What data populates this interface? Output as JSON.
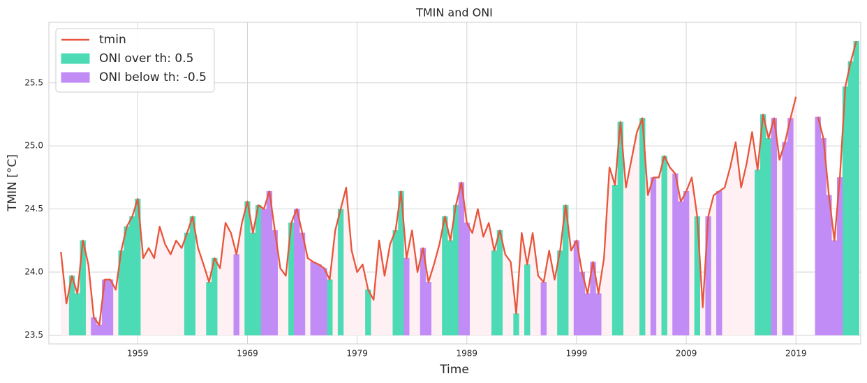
{
  "chart_data": {
    "type": "line",
    "title": "TMIN and ONI",
    "x_label": "Time",
    "y_label": "TMIN [°C]",
    "xlim": [
      1950.9,
      2024.9
    ],
    "xticks": [
      1959,
      1969,
      1979,
      1989,
      1999,
      2009,
      2019
    ],
    "ylim": [
      23.43,
      25.98
    ],
    "yticks": [
      {
        "value": 23.5,
        "label": "23.5"
      },
      {
        "value": 24,
        "label": "24.0"
      },
      {
        "value": 24.5,
        "label": "24.5"
      },
      {
        "value": 25,
        "label": "25.0"
      },
      {
        "value": 25.5,
        "label": "25.5"
      }
    ],
    "grid": true,
    "legend": "upper-left",
    "fill_base": 23.5,
    "background_fill": "#fff0f3",
    "x": [
      1952,
      1952.5,
      1953,
      1953.5,
      1954,
      1954.5,
      1955,
      1955.5,
      1956,
      1956.5,
      1957,
      1957.5,
      1958,
      1958.5,
      1959,
      1959.5,
      1960,
      1960.5,
      1961,
      1961.5,
      1962,
      1962.5,
      1963,
      1963.5,
      1964,
      1964.5,
      1965,
      1965.5,
      1966,
      1966.5,
      1967,
      1967.5,
      1968,
      1968.5,
      1969,
      1969.5,
      1970,
      1970.5,
      1971,
      1971.5,
      1972,
      1972.5,
      1973,
      1973.5,
      1974,
      1974.5,
      1975,
      1975.5,
      1976,
      1976.5,
      1977,
      1977.5,
      1978,
      1978.5,
      1979,
      1979.5,
      1980,
      1980.5,
      1981,
      1981.5,
      1982,
      1982.5,
      1983,
      1983.5,
      1984,
      1984.5,
      1985,
      1985.5,
      1986,
      1986.5,
      1987,
      1987.5,
      1988,
      1988.5,
      1989,
      1989.5,
      1990,
      1990.5,
      1991,
      1991.5,
      1992,
      1992.5,
      1993,
      1993.5,
      1994,
      1994.5,
      1995,
      1995.5,
      1996,
      1996.5,
      1997,
      1997.5,
      1998,
      1998.5,
      1999,
      1999.5,
      2000,
      2000.5,
      2001,
      2001.5,
      2002,
      2002.5,
      2003,
      2003.5,
      2004,
      2004.5,
      2005,
      2005.5,
      2006,
      2006.5,
      2007,
      2007.5,
      2008,
      2008.5,
      2009,
      2009.5,
      2010,
      2010.5,
      2011,
      2011.5,
      2012,
      2012.5,
      2013,
      2013.5,
      2014,
      2014.5,
      2015,
      2015.5,
      2016,
      2016.5,
      2017,
      2017.5,
      2018,
      2018.5,
      2019,
      2019.5,
      2020,
      2020.5,
      2021,
      2021.5,
      2022,
      2022.5,
      2023,
      2023.5,
      2024,
      2024.5
    ],
    "series": [
      {
        "name": "tmin",
        "color": "#e8553a",
        "values": [
          24.16,
          23.75,
          23.97,
          23.83,
          24.25,
          24.06,
          23.64,
          23.58,
          23.94,
          23.94,
          23.86,
          24.17,
          24.36,
          24.44,
          24.58,
          24.11,
          24.19,
          24.11,
          24.36,
          24.22,
          24.14,
          24.25,
          24.19,
          24.31,
          24.44,
          24.19,
          24.06,
          23.92,
          24.11,
          24.03,
          24.39,
          24.31,
          24.14,
          24.39,
          24.56,
          24.31,
          24.53,
          24.5,
          24.64,
          24.33,
          24.03,
          23.97,
          24.39,
          24.5,
          24.31,
          24.11,
          24.08,
          24.06,
          24.03,
          23.94,
          24.33,
          24.5,
          24.67,
          24.17,
          24.0,
          24.06,
          23.86,
          23.78,
          24.25,
          23.97,
          24.22,
          24.33,
          24.64,
          24.11,
          24.33,
          24.0,
          24.19,
          23.92,
          24.06,
          24.22,
          24.44,
          24.25,
          24.53,
          24.71,
          24.39,
          24.31,
          24.5,
          24.28,
          24.39,
          24.17,
          24.33,
          24.14,
          24.08,
          23.67,
          24.31,
          24.06,
          24.31,
          23.97,
          23.92,
          24.17,
          23.94,
          24.17,
          24.53,
          24.17,
          24.25,
          24.0,
          23.83,
          24.08,
          23.83,
          24.11,
          24.83,
          24.69,
          25.19,
          24.67,
          24.89,
          25.11,
          25.22,
          24.61,
          24.75,
          24.75,
          24.92,
          24.83,
          24.78,
          24.56,
          24.64,
          24.75,
          24.44,
          23.72,
          24.44,
          24.61,
          24.64,
          24.67,
          24.83,
          25.03,
          24.67,
          24.86,
          25.11,
          24.81,
          25.25,
          25.06,
          25.22,
          24.89,
          25.03,
          25.22,
          25.39,
          null,
          null,
          null,
          25.23,
          25.06,
          24.61,
          24.25,
          24.75,
          25.47,
          25.67,
          25.83
        ]
      },
      {
        "name": "ONI over th: 0.5",
        "color": "#4cdbb4",
        "fill": true,
        "x": [
          1953,
          1953.5,
          1954,
          1957.5,
          1958,
          1958.5,
          1959,
          1963.5,
          1964,
          1965.5,
          1966,
          1969,
          1969.5,
          1970,
          1973,
          1976.5,
          1977.5,
          1980,
          1982.5,
          1983,
          1987,
          1987.5,
          1988,
          1991.5,
          1992,
          1993.5,
          1994.5,
          1997.5,
          1998,
          2002.5,
          2003,
          2005,
          2007,
          2010,
          2015.5,
          2016,
          2016.5,
          2023.5,
          2024,
          2024.5
        ],
        "values": [
          23.97,
          23.83,
          24.25,
          24.17,
          24.36,
          24.44,
          24.58,
          24.31,
          24.44,
          23.92,
          24.11,
          24.56,
          24.31,
          24.53,
          24.39,
          23.94,
          24.5,
          23.86,
          24.33,
          24.64,
          24.44,
          24.25,
          24.53,
          24.17,
          24.33,
          23.67,
          24.06,
          24.17,
          24.53,
          24.69,
          25.19,
          25.22,
          24.92,
          24.44,
          24.81,
          25.25,
          25.06,
          25.47,
          25.67,
          25.83
        ]
      },
      {
        "name": "ONI below th: -0.5",
        "color": "#c18cf5",
        "fill": true,
        "x": [
          1955,
          1955.5,
          1956,
          1956.5,
          1968,
          1970.5,
          1971,
          1971.5,
          1973.5,
          1974,
          1975,
          1975.5,
          1976,
          1983.5,
          1985,
          1985.5,
          1988.5,
          1989,
          1996,
          1999,
          1999.5,
          2000,
          2000.5,
          2001,
          2006,
          2008,
          2008.5,
          2009,
          2011,
          2012,
          2017,
          2018,
          2018.5,
          2021,
          2021.5,
          2022,
          2022.5,
          2023
        ],
        "values": [
          23.64,
          23.58,
          23.94,
          23.94,
          24.14,
          24.5,
          24.64,
          24.33,
          24.5,
          24.31,
          24.08,
          24.06,
          24.03,
          24.11,
          24.19,
          23.92,
          24.71,
          24.39,
          23.92,
          24.25,
          24.0,
          23.83,
          24.08,
          23.83,
          24.75,
          24.78,
          24.56,
          24.64,
          24.44,
          24.64,
          25.22,
          25.03,
          25.22,
          25.23,
          25.06,
          24.61,
          24.25,
          24.75
        ]
      }
    ]
  }
}
